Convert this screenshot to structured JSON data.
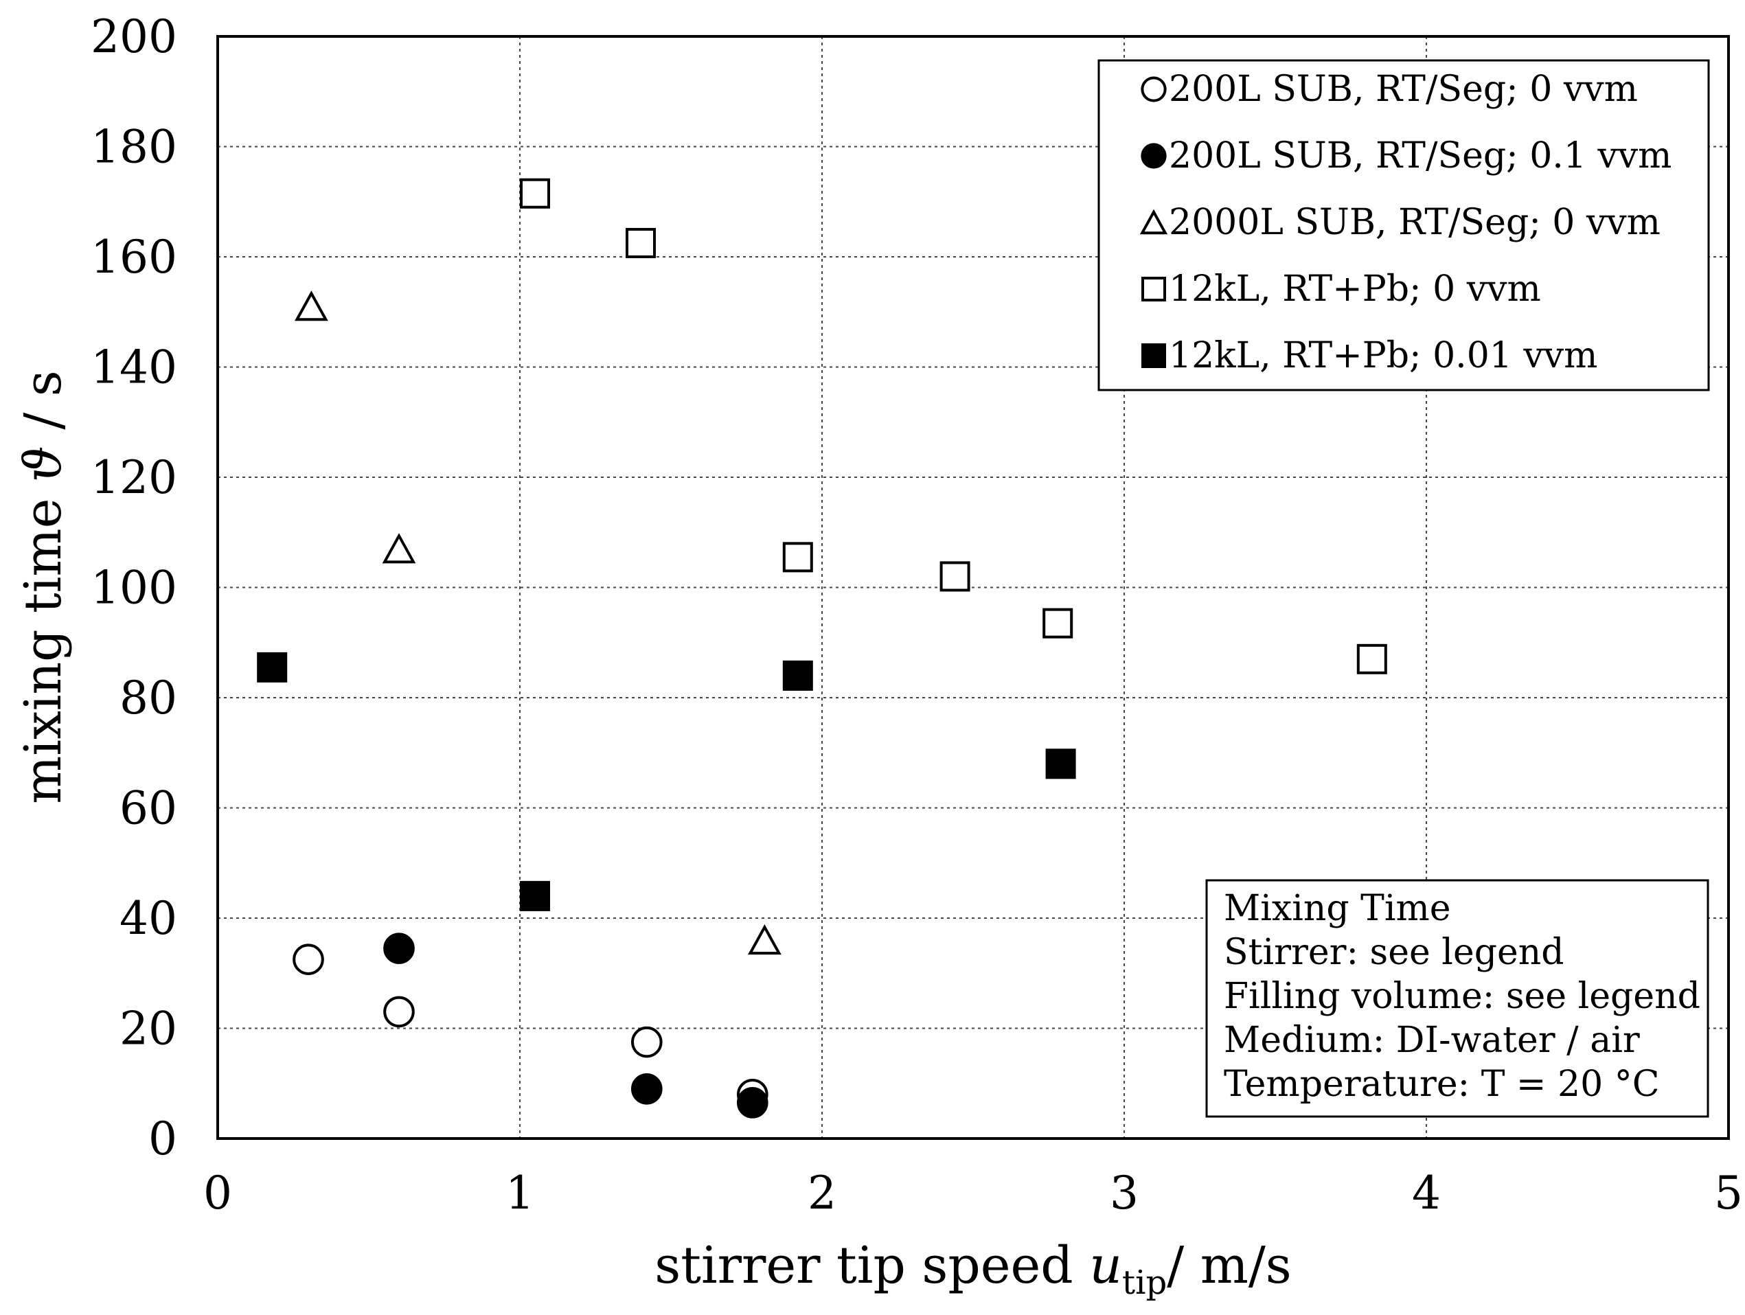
{
  "chart_data": {
    "type": "scatter",
    "title": "",
    "xlabel": {
      "main": "stirrer tip speed ",
      "var": "u",
      "sub": "tip",
      "unit": "/ m/s"
    },
    "ylabel": {
      "main": "mixing time ",
      "symbol": "ϑ",
      "unit": " / s"
    },
    "xlim": [
      0,
      5
    ],
    "ylim": [
      0,
      200
    ],
    "xticks": [
      "0",
      "1",
      "2",
      "3",
      "4",
      "5"
    ],
    "yticks": [
      "0",
      "20",
      "40",
      "60",
      "80",
      "100",
      "120",
      "140",
      "160",
      "180",
      "200"
    ],
    "grid": true,
    "legend_position": "top-right",
    "series": [
      {
        "name": "200L SUB, RT/Seg; 0 vvm",
        "marker": "circle-open",
        "points": [
          [
            0.3,
            32.5
          ],
          [
            0.6,
            23
          ],
          [
            1.42,
            17.5
          ],
          [
            1.77,
            8
          ]
        ]
      },
      {
        "name": "200L SUB, RT/Seg; 0.1 vvm",
        "marker": "circle-filled",
        "points": [
          [
            0.6,
            34.5
          ],
          [
            1.42,
            9
          ],
          [
            1.77,
            6.5
          ]
        ]
      },
      {
        "name": "2000L SUB, RT/Seg; 0 vvm",
        "marker": "triangle-open",
        "points": [
          [
            0.31,
            151
          ],
          [
            0.6,
            107
          ],
          [
            1.81,
            36
          ]
        ]
      },
      {
        "name": "12kL, RT+Pb; 0 vvm",
        "marker": "square-open",
        "points": [
          [
            1.05,
            171.5
          ],
          [
            1.4,
            162.5
          ],
          [
            1.92,
            105.5
          ],
          [
            2.44,
            102
          ],
          [
            2.78,
            93.5
          ],
          [
            3.82,
            87
          ]
        ]
      },
      {
        "name": "12kL, RT+Pb; 0.01 vvm",
        "marker": "square-filled",
        "points": [
          [
            0.18,
            85.5
          ],
          [
            1.05,
            44
          ],
          [
            1.92,
            84
          ],
          [
            2.79,
            68
          ]
        ]
      }
    ],
    "annotation": [
      "Mixing Time",
      "Stirrer: see legend",
      "Filling volume: see legend",
      "Medium: DI-water / air",
      "Temperature: T = 20 °C"
    ]
  }
}
